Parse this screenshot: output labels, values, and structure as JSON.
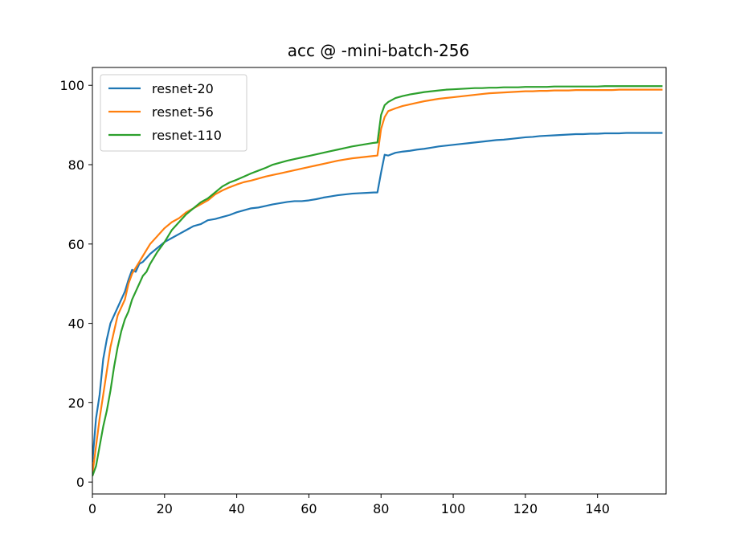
{
  "chart_data": {
    "type": "line",
    "title": "acc @ -mini-batch-256",
    "xlabel": "",
    "ylabel": "",
    "xlim": [
      0,
      159
    ],
    "ylim": [
      -3,
      104.5
    ],
    "xticks": [
      0,
      20,
      40,
      60,
      80,
      100,
      120,
      140
    ],
    "yticks": [
      0,
      20,
      40,
      60,
      80,
      100
    ],
    "grid": false,
    "legend_position": "top-left",
    "series": [
      {
        "name": "resnet-20",
        "color": "#1f77b4",
        "x": [
          0,
          1,
          2,
          3,
          4,
          5,
          6,
          7,
          8,
          9,
          10,
          11,
          12,
          13,
          14,
          15,
          16,
          18,
          20,
          22,
          24,
          26,
          28,
          30,
          32,
          34,
          36,
          38,
          40,
          42,
          44,
          46,
          48,
          50,
          52,
          54,
          56,
          58,
          60,
          62,
          64,
          66,
          68,
          70,
          72,
          74,
          76,
          78,
          79,
          80,
          81,
          82,
          84,
          86,
          88,
          90,
          92,
          94,
          96,
          98,
          100,
          102,
          104,
          106,
          108,
          110,
          112,
          114,
          116,
          118,
          120,
          122,
          124,
          126,
          128,
          130,
          132,
          134,
          136,
          138,
          140,
          142,
          144,
          146,
          148,
          150,
          152,
          154,
          156,
          158
        ],
        "values": [
          5,
          16,
          22,
          31,
          36,
          40,
          42,
          44,
          46,
          48,
          51,
          53.5,
          53,
          55,
          55.5,
          56.5,
          57.5,
          59,
          60.5,
          61.5,
          62.5,
          63.5,
          64.5,
          65,
          66,
          66.3,
          66.8,
          67.3,
          68,
          68.5,
          69,
          69.2,
          69.6,
          70,
          70.3,
          70.6,
          70.8,
          70.8,
          71,
          71.3,
          71.7,
          72,
          72.3,
          72.5,
          72.7,
          72.8,
          72.9,
          73,
          73,
          78,
          82.5,
          82.3,
          83,
          83.3,
          83.5,
          83.8,
          84,
          84.3,
          84.6,
          84.8,
          85,
          85.2,
          85.4,
          85.6,
          85.8,
          86,
          86.2,
          86.3,
          86.5,
          86.7,
          86.9,
          87,
          87.2,
          87.3,
          87.4,
          87.5,
          87.6,
          87.7,
          87.7,
          87.8,
          87.8,
          87.9,
          87.9,
          87.9,
          88,
          88,
          88,
          88,
          88,
          88
        ]
      },
      {
        "name": "resnet-56",
        "color": "#ff7f0e",
        "x": [
          0,
          1,
          2,
          3,
          4,
          5,
          6,
          7,
          8,
          9,
          10,
          11,
          12,
          13,
          14,
          15,
          16,
          18,
          20,
          22,
          24,
          26,
          28,
          30,
          32,
          34,
          36,
          38,
          40,
          42,
          44,
          46,
          48,
          50,
          52,
          54,
          56,
          58,
          60,
          62,
          64,
          66,
          68,
          70,
          72,
          74,
          76,
          78,
          79,
          80,
          81,
          82,
          84,
          86,
          88,
          90,
          92,
          94,
          96,
          98,
          100,
          102,
          104,
          106,
          108,
          110,
          112,
          114,
          116,
          118,
          120,
          122,
          124,
          126,
          128,
          130,
          132,
          134,
          136,
          138,
          140,
          142,
          144,
          146,
          148,
          150,
          152,
          154,
          156,
          158
        ],
        "values": [
          2,
          9,
          16,
          22,
          28,
          34,
          38,
          42,
          44,
          46,
          50,
          52.5,
          54,
          55.5,
          57,
          58.5,
          60,
          62,
          64,
          65.5,
          66.5,
          68,
          69,
          70,
          71,
          72.5,
          73.5,
          74.3,
          75,
          75.6,
          76,
          76.5,
          77,
          77.4,
          77.8,
          78.2,
          78.6,
          79,
          79.4,
          79.8,
          80.2,
          80.6,
          81,
          81.3,
          81.6,
          81.8,
          82,
          82.2,
          82.3,
          89,
          92,
          93.5,
          94.2,
          94.8,
          95.2,
          95.6,
          96,
          96.3,
          96.6,
          96.8,
          97,
          97.2,
          97.4,
          97.6,
          97.8,
          98,
          98.1,
          98.2,
          98.3,
          98.4,
          98.5,
          98.5,
          98.6,
          98.6,
          98.7,
          98.7,
          98.7,
          98.8,
          98.8,
          98.8,
          98.8,
          98.8,
          98.8,
          98.9,
          98.9,
          98.9,
          98.9,
          98.9,
          98.9,
          98.9
        ]
      },
      {
        "name": "resnet-110",
        "color": "#2ca02c",
        "x": [
          0,
          1,
          2,
          3,
          4,
          5,
          6,
          7,
          8,
          9,
          10,
          11,
          12,
          13,
          14,
          15,
          16,
          18,
          20,
          22,
          24,
          26,
          28,
          30,
          32,
          34,
          36,
          38,
          40,
          42,
          44,
          46,
          48,
          50,
          52,
          54,
          56,
          58,
          60,
          62,
          64,
          66,
          68,
          70,
          72,
          74,
          76,
          78,
          79,
          80,
          81,
          82,
          84,
          86,
          88,
          90,
          92,
          94,
          96,
          98,
          100,
          102,
          104,
          106,
          108,
          110,
          112,
          114,
          116,
          118,
          120,
          122,
          124,
          126,
          128,
          130,
          132,
          134,
          136,
          138,
          140,
          142,
          144,
          146,
          148,
          150,
          152,
          154,
          156,
          158
        ],
        "values": [
          1.5,
          4,
          9,
          14,
          18,
          23,
          29,
          34,
          38,
          41,
          43,
          46,
          48,
          50,
          52,
          53,
          55,
          58,
          60.5,
          63.5,
          65.5,
          67.5,
          69,
          70.5,
          71.5,
          73,
          74.5,
          75.5,
          76.2,
          77,
          77.8,
          78.5,
          79.2,
          80,
          80.5,
          81,
          81.4,
          81.8,
          82.2,
          82.6,
          83,
          83.4,
          83.8,
          84.2,
          84.6,
          84.9,
          85.2,
          85.5,
          85.6,
          92.5,
          95,
          95.8,
          96.8,
          97.3,
          97.7,
          98,
          98.3,
          98.5,
          98.7,
          98.9,
          99,
          99.1,
          99.2,
          99.3,
          99.3,
          99.4,
          99.4,
          99.5,
          99.5,
          99.5,
          99.6,
          99.6,
          99.6,
          99.6,
          99.7,
          99.7,
          99.7,
          99.7,
          99.7,
          99.7,
          99.7,
          99.8,
          99.8,
          99.8,
          99.8,
          99.8,
          99.8,
          99.8,
          99.8,
          99.8
        ]
      }
    ]
  }
}
